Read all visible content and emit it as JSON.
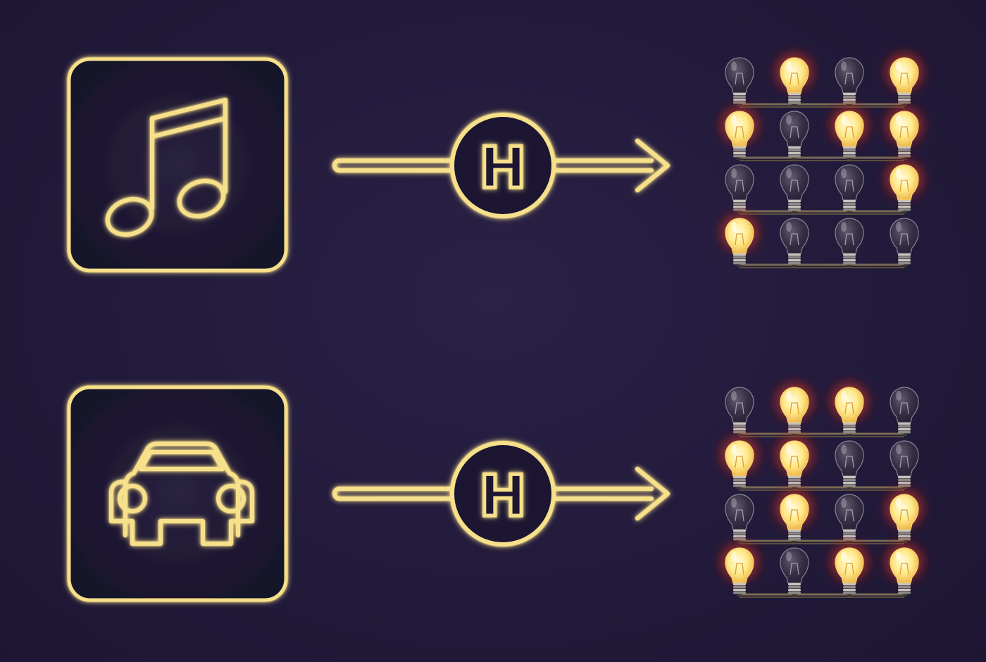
{
  "colors": {
    "background": "#231b3c",
    "neon": "#f7e08a",
    "neon_glow": "#e8c44a",
    "tile_fill": "#1e1732",
    "bulb_on": "#fff1a8",
    "bulb_on_glow": "#ff5a1f",
    "bulb_off": "#4a4458",
    "wire": "#7a6a52"
  },
  "rows": [
    {
      "input_icon": "music-note-icon",
      "hash_label": "H",
      "bulbs": [
        [
          0,
          1,
          0,
          1
        ],
        [
          1,
          0,
          1,
          1
        ],
        [
          0,
          0,
          0,
          1
        ],
        [
          1,
          0,
          0,
          0
        ]
      ]
    },
    {
      "input_icon": "car-icon",
      "hash_label": "H",
      "bulbs": [
        [
          0,
          1,
          1,
          0
        ],
        [
          1,
          1,
          0,
          0
        ],
        [
          0,
          1,
          0,
          1
        ],
        [
          1,
          0,
          1,
          1
        ]
      ]
    }
  ]
}
